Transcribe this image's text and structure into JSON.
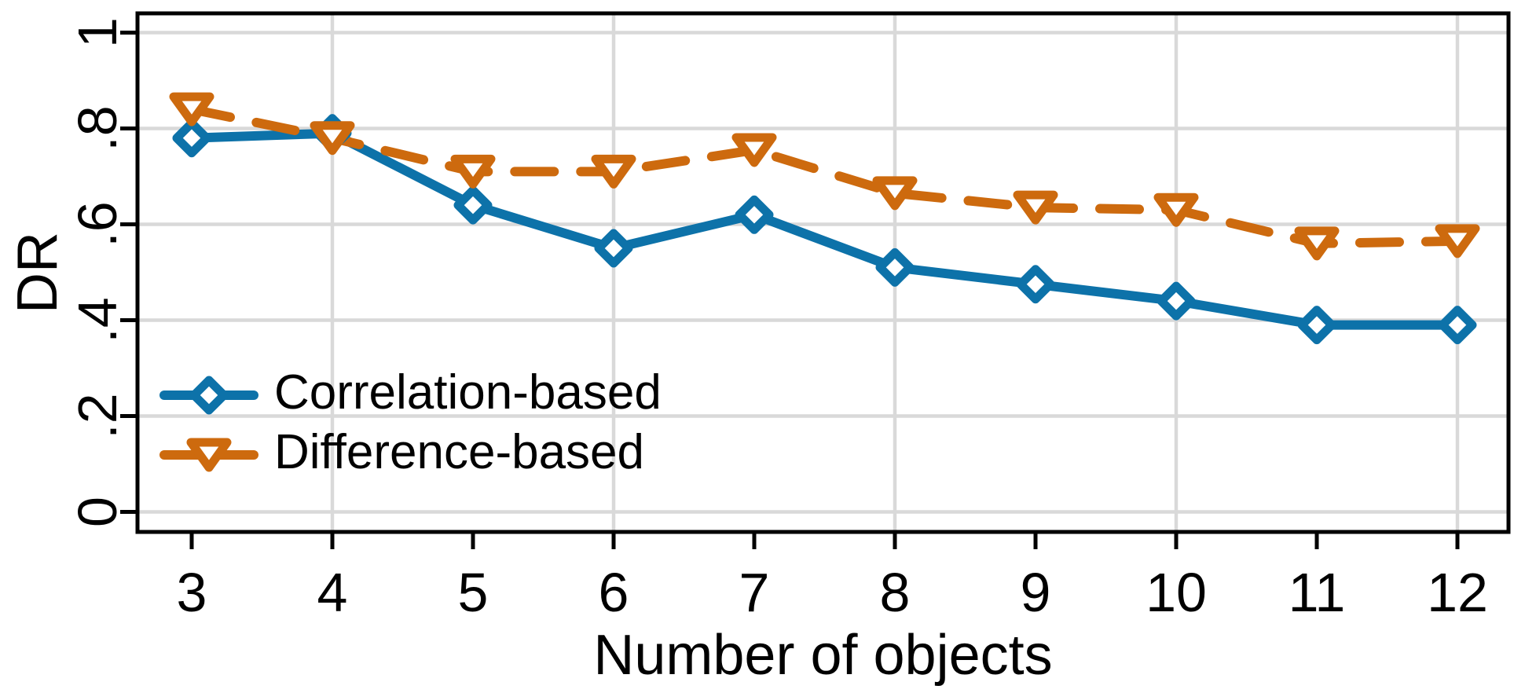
{
  "figure": {
    "background_color": "#ffffff",
    "frame_color": "#000000",
    "text_color": "#000000"
  },
  "chart_data": {
    "type": "line",
    "title": "",
    "xlabel": "Number of objects",
    "ylabel": "DR",
    "x": [
      3,
      4,
      5,
      6,
      7,
      8,
      9,
      10,
      11,
      12
    ],
    "series": [
      {
        "name": "Correlation-based",
        "color": "#0d72a9",
        "marker": "diamond",
        "line_style": "solid",
        "values": [
          0.78,
          0.79,
          0.64,
          0.55,
          0.62,
          0.51,
          0.475,
          0.44,
          0.39,
          0.39
        ]
      },
      {
        "name": "Difference-based",
        "color": "#cd6a0e",
        "marker": "triangle-down",
        "line_style": "dashed",
        "values": [
          0.84,
          0.78,
          0.71,
          0.71,
          0.755,
          0.665,
          0.635,
          0.63,
          0.56,
          0.565
        ]
      }
    ],
    "xlim": [
      2.6,
      12.37
    ],
    "ylim": [
      0,
      1
    ],
    "xticks": {
      "values": [
        3,
        4,
        5,
        6,
        7,
        8,
        9,
        10,
        11,
        12
      ],
      "labels": [
        "3",
        "4",
        "5",
        "6",
        "7",
        "8",
        "9",
        "10",
        "11",
        "12"
      ]
    },
    "yticks": {
      "values": [
        0,
        0.2,
        0.4,
        0.6,
        0.8,
        1
      ],
      "labels": [
        "0",
        ".2",
        ".4",
        ".6",
        ".8",
        "1"
      ],
      "label_rotation_deg": -90
    },
    "grid": {
      "on": true,
      "color": "#d9d9d9",
      "horizontal_at": [
        0,
        0.2,
        0.4,
        0.6,
        0.8,
        1
      ],
      "vertical_at": [
        4,
        6,
        8,
        10,
        12
      ]
    },
    "legend": {
      "position": "inside-lower-left",
      "border": "none",
      "entries": [
        "Correlation-based",
        "Difference-based"
      ]
    }
  }
}
